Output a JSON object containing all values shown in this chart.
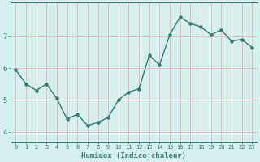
{
  "x": [
    0,
    1,
    2,
    3,
    4,
    5,
    6,
    7,
    8,
    9,
    10,
    11,
    12,
    13,
    14,
    15,
    16,
    17,
    18,
    19,
    20,
    21,
    22,
    23
  ],
  "y": [
    5.95,
    5.5,
    5.3,
    5.5,
    5.05,
    4.4,
    4.55,
    4.2,
    4.3,
    4.45,
    5.0,
    5.25,
    5.35,
    6.4,
    6.1,
    7.05,
    7.6,
    7.4,
    7.3,
    7.05,
    7.2,
    6.85,
    6.9,
    6.65
  ],
  "xlabel": "Humidex (Indice chaleur)",
  "line_color": "#2e7d6e",
  "marker_color": "#2e7d6e",
  "bg_color": "#d6efef",
  "grid_color": "#f0b0b0",
  "axis_color": "#2e7d6e",
  "tick_color": "#2e7d6e",
  "xlim": [
    -0.5,
    23.5
  ],
  "ylim": [
    3.7,
    8.05
  ],
  "yticks": [
    4,
    5,
    6,
    7
  ],
  "xticks": [
    0,
    1,
    2,
    3,
    4,
    5,
    6,
    7,
    8,
    9,
    10,
    11,
    12,
    13,
    14,
    15,
    16,
    17,
    18,
    19,
    20,
    21,
    22,
    23
  ],
  "xticklabels": [
    "0",
    "1",
    "2",
    "3",
    "4",
    "5",
    "6",
    "7",
    "8",
    "9",
    "10",
    "11",
    "12",
    "13",
    "14",
    "15",
    "16",
    "17",
    "18",
    "19",
    "20",
    "21",
    "22",
    "23"
  ],
  "yticklabels": [
    "4",
    "5",
    "6",
    "7"
  ],
  "xtick_fontsize": 5.0,
  "ytick_fontsize": 6.5,
  "xlabel_fontsize": 6.5,
  "linewidth": 1.0,
  "markersize": 2.2
}
